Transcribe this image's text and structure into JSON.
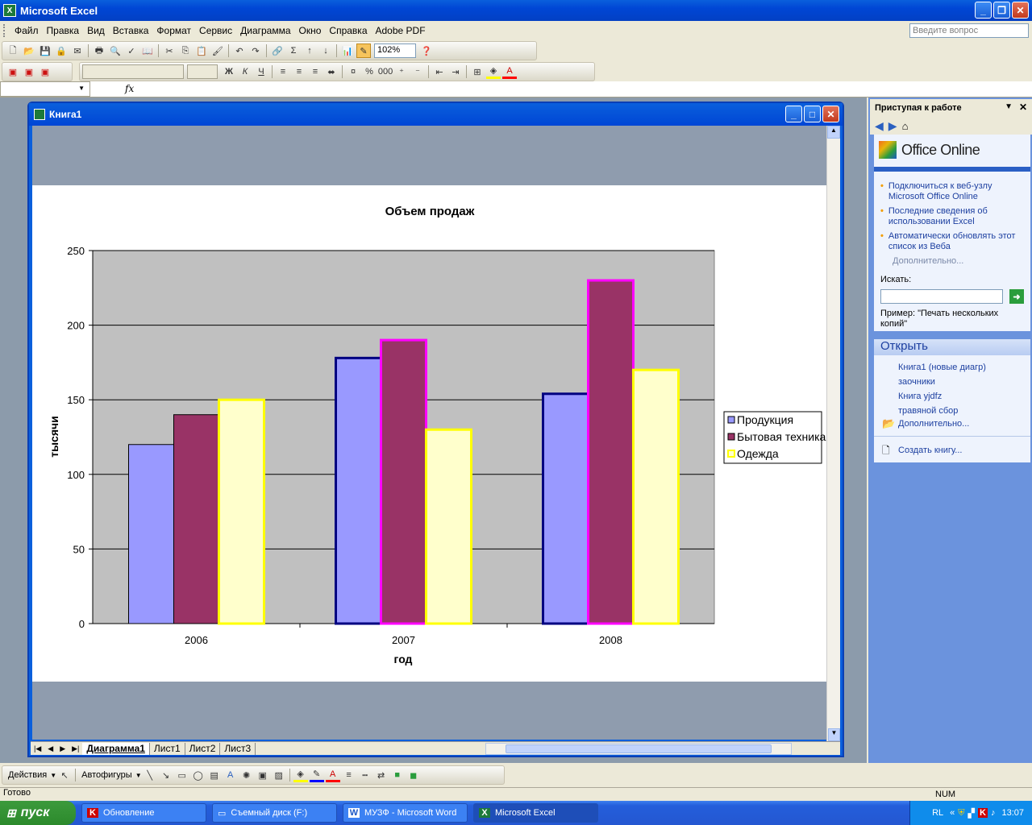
{
  "app": {
    "title": "Microsoft Excel",
    "workbook_title": "Книга1",
    "ask_placeholder": "Введите вопрос"
  },
  "menu": [
    "Файл",
    "Правка",
    "Вид",
    "Вставка",
    "Формат",
    "Сервис",
    "Диаграмма",
    "Окно",
    "Справка",
    "Adobe PDF"
  ],
  "toolbar": {
    "zoom": "102%"
  },
  "formula": {
    "fx": "fx"
  },
  "sheets": [
    "Диаграмма1",
    "Лист1",
    "Лист2",
    "Лист3"
  ],
  "taskpane": {
    "title": "Приступая к работе",
    "office_online": "Office Online",
    "links": [
      "Подключиться к веб-узлу Microsoft Office Online",
      "Последние сведения об использовании Excel",
      "Автоматически обновлять этот список из Веба"
    ],
    "more": "Дополнительно...",
    "search_label": "Искать:",
    "example": "Пример:  \"Печать нескольких копий\"",
    "open_title": "Открыть",
    "files": [
      "Книга1 (новые диагр)",
      "заочники",
      "Книга yjdfz",
      "травяной сбор"
    ],
    "open_more": "Дополнительно...",
    "create": "Создать книгу..."
  },
  "drawbar": {
    "actions": "Действия",
    "autoshapes": "Автофигуры"
  },
  "status": {
    "ready": "Готово",
    "num": "NUM"
  },
  "taskbar": {
    "start": "пуск",
    "tasks": [
      "Обновление",
      "Съемный диск (F:)",
      "МУЗФ - Microsoft Word",
      "Microsoft Excel"
    ],
    "lang": "RL",
    "clock": "13:07"
  },
  "colors": {
    "series1": "#9999ff",
    "series2": "#993366",
    "series3": "#ffffcc",
    "plot_bg": "#c0c0c0"
  },
  "chart_data": {
    "type": "bar",
    "title": "Объем продаж",
    "xlabel": "год",
    "ylabel": "тысячи",
    "categories": [
      "2006",
      "2007",
      "2008"
    ],
    "series": [
      {
        "name": "Продукция",
        "values": [
          120,
          178,
          154
        ]
      },
      {
        "name": "Бытовая техника",
        "values": [
          140,
          190,
          230
        ]
      },
      {
        "name": "Одежда",
        "values": [
          150,
          130,
          170
        ]
      }
    ],
    "ylim": [
      0,
      250
    ],
    "yticks": [
      0,
      50,
      100,
      150,
      200,
      250
    ],
    "grid": true,
    "legend": "right"
  }
}
